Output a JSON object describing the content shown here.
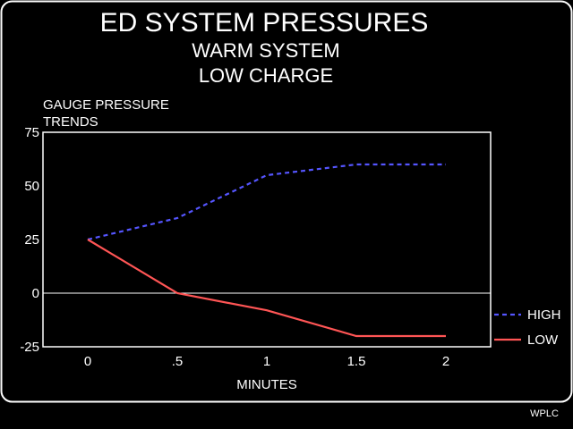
{
  "title": "ED SYSTEM PRESSURES",
  "subtitle_1": "WARM SYSTEM",
  "subtitle_2": "LOW CHARGE",
  "credit": "WPLC",
  "colors": {
    "background": "#000000",
    "foreground": "#ffffff",
    "high": "#5555ff",
    "low": "#ff5555"
  },
  "chart_data": {
    "type": "line",
    "ylabel_line1": "GAUGE PRESSURE",
    "ylabel_line2": "TRENDS",
    "xlabel": "MINUTES",
    "xlim": [
      -0.25,
      2.25
    ],
    "ylim": [
      -25,
      75
    ],
    "x": [
      0,
      0.5,
      1,
      1.5,
      2
    ],
    "x_tick_labels": [
      "0",
      ".5",
      "1",
      "1.5",
      "2"
    ],
    "y_ticks": [
      75,
      50,
      25,
      0,
      -25
    ],
    "y_tick_labels": [
      "75",
      "50",
      "25",
      "0",
      "-25"
    ],
    "zero_line": true,
    "legend_position": "bottom-right outside",
    "series": [
      {
        "name": "HIGH",
        "style": "dashed",
        "color": "#5555ff",
        "values": [
          25,
          35,
          55,
          60,
          60
        ]
      },
      {
        "name": "LOW",
        "style": "solid",
        "color": "#ff5555",
        "values": [
          25,
          0,
          -8,
          -20,
          -20
        ]
      }
    ]
  }
}
